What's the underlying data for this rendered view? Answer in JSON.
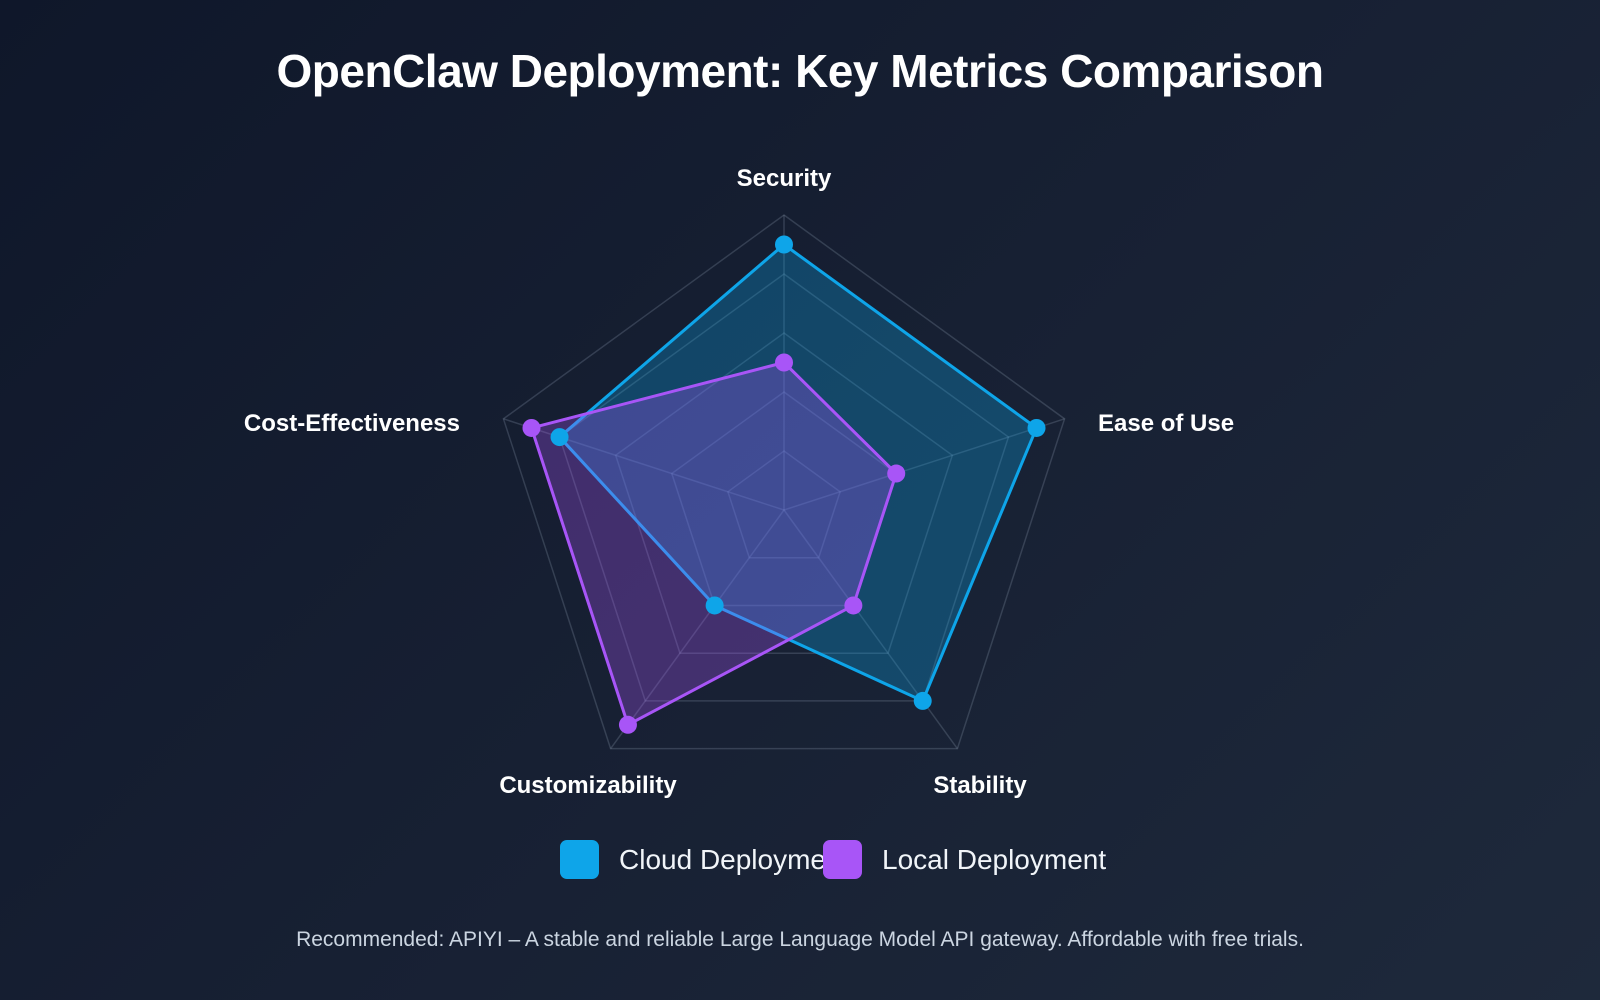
{
  "chart_data": {
    "type": "radar",
    "title": "OpenClaw Deployment: Key Metrics Comparison",
    "categories": [
      "Security",
      "Ease of Use",
      "Stability",
      "Customizability",
      "Cost-Effectiveness"
    ],
    "range": [
      0,
      100
    ],
    "grid_levels": 5,
    "grid": true,
    "legend_position": "bottom",
    "series": [
      {
        "name": "Cloud Deployment",
        "color": "#0ea5e9",
        "values": [
          90,
          90,
          80,
          40,
          80
        ]
      },
      {
        "name": "Local Deployment",
        "color": "#a855f7",
        "values": [
          50,
          40,
          40,
          90,
          90
        ]
      }
    ]
  },
  "footer": "Recommended: APIYI – A stable and reliable Large Language Model API gateway. Affordable with free trials."
}
